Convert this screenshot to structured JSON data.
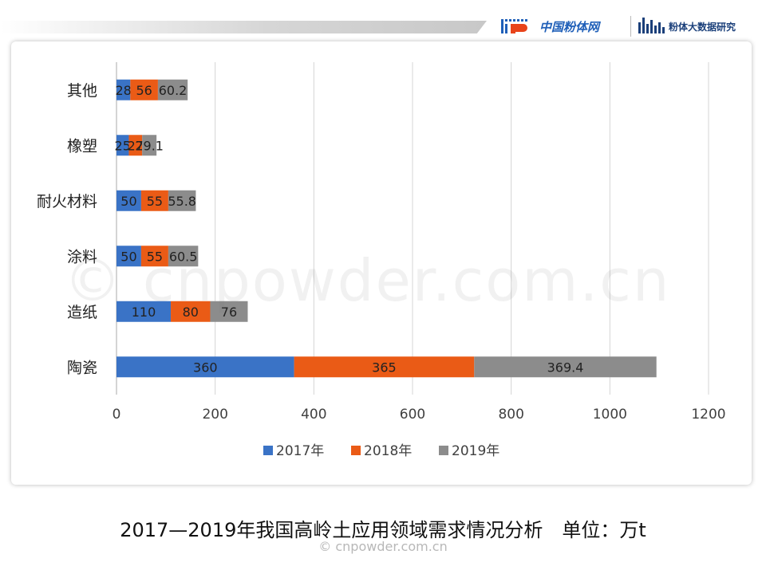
{
  "header": {
    "brand1": "中国粉体网",
    "brand2": "粉体大数据研究"
  },
  "watermark": {
    "large": "© cnpowder.com.cn",
    "small": "© cnpowder.com.cn"
  },
  "caption": "2017—2019年我国高岭土应用领域需求情况分析　单位：万t",
  "colors": {
    "2017": "#3a73c6",
    "2018": "#ea5b16",
    "2019": "#8c8c8c",
    "grid": "#d4d4d4",
    "axis": "#aaaaaa"
  },
  "chart_data": {
    "type": "bar",
    "orientation": "horizontal",
    "stacked": true,
    "categories": [
      "其他",
      "橡塑",
      "耐火材料",
      "涂料",
      "造纸",
      "陶瓷"
    ],
    "series": [
      {
        "name": "2017年",
        "values": [
          28,
          25,
          50,
          50,
          110,
          360
        ],
        "labels": [
          "28",
          "25",
          "50",
          "50",
          "110",
          "360"
        ]
      },
      {
        "name": "2018年",
        "values": [
          56,
          27,
          55,
          55,
          80,
          365
        ],
        "labels": [
          "56",
          "27",
          "55",
          "55",
          "80",
          "365"
        ]
      },
      {
        "name": "2019年",
        "values": [
          60.2,
          29.1,
          55.8,
          60.5,
          76,
          369.4
        ],
        "labels": [
          "60.2",
          "29.1",
          "55.8",
          "60.5",
          "76",
          "369.4"
        ]
      }
    ],
    "xlim": [
      0,
      1200
    ],
    "xticks": [
      "0",
      "200",
      "400",
      "600",
      "800",
      "1000",
      "1200"
    ],
    "xtick_values": [
      0,
      200,
      400,
      600,
      800,
      1000,
      1200
    ],
    "grid": true,
    "legend": "bottom-center"
  }
}
